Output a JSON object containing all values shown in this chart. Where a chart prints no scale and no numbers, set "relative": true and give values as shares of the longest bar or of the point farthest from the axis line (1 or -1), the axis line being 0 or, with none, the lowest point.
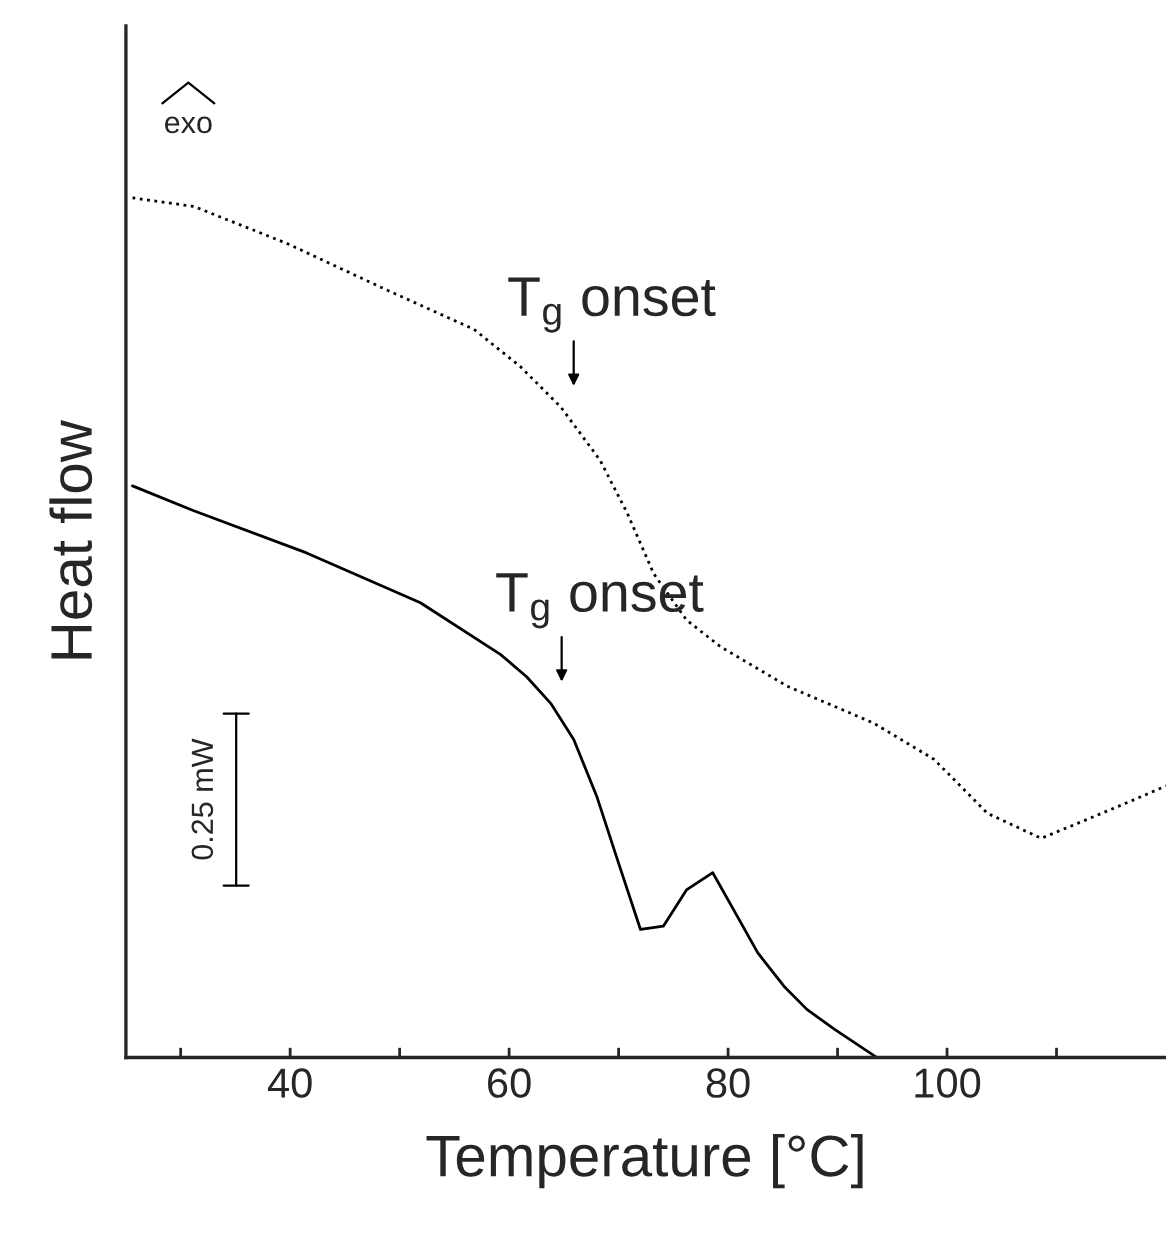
{
  "chart_data": {
    "type": "line",
    "relative": true,
    "xlabel": "Temperature [°C]",
    "ylabel": "Heat flow",
    "xlim": [
      25,
      120
    ],
    "xticks": [
      {
        "value": 30,
        "label": null
      },
      40,
      {
        "value": 50,
        "label": null
      },
      60,
      {
        "value": 70,
        "label": null
      },
      80,
      {
        "value": 90,
        "label": null
      },
      100,
      {
        "value": 110,
        "label": null
      }
    ],
    "grid": false,
    "legend": false,
    "marker": "none",
    "series": [
      {
        "color": "#000000",
        "line_style": "dotted",
        "x": [
          25.6,
          31.2,
          39.7,
          48.8,
          56.8,
          61.0,
          64.7,
          68.3,
          70.8,
          73.2,
          76.2,
          79.3,
          85.4,
          93.3,
          98.8,
          103.7,
          108.6,
          112.8,
          117.1,
          120.0
        ],
        "values": [
          1.0,
          0.99,
          0.947,
          0.893,
          0.847,
          0.804,
          0.757,
          0.695,
          0.633,
          0.563,
          0.509,
          0.478,
          0.432,
          0.389,
          0.347,
          0.284,
          0.255,
          0.277,
          0.3,
          0.316
        ]
      },
      {
        "color": "#000000",
        "line_style": "solid",
        "x": [
          25.6,
          31.2,
          41.5,
          51.9,
          59.2,
          61.6,
          63.8,
          65.9,
          68.0,
          69.9,
          72.0,
          74.1,
          76.2,
          78.6,
          80.5,
          82.7,
          85.1,
          87.2,
          89.7,
          93.6
        ],
        "values": [
          0.665,
          0.636,
          0.587,
          0.529,
          0.469,
          0.443,
          0.412,
          0.37,
          0.304,
          0.23,
          0.149,
          0.153,
          0.195,
          0.215,
          0.172,
          0.122,
          0.083,
          0.056,
          0.033,
          0.0
        ]
      }
    ],
    "annotations": [
      {
        "text": "T$_{g}$ onset",
        "x": 65.9,
        "y": 0.736
      },
      {
        "text": "T$_{g}$ onset",
        "x": 64.8,
        "y": 0.392
      },
      "exo",
      "0.25 mW"
    ]
  }
}
